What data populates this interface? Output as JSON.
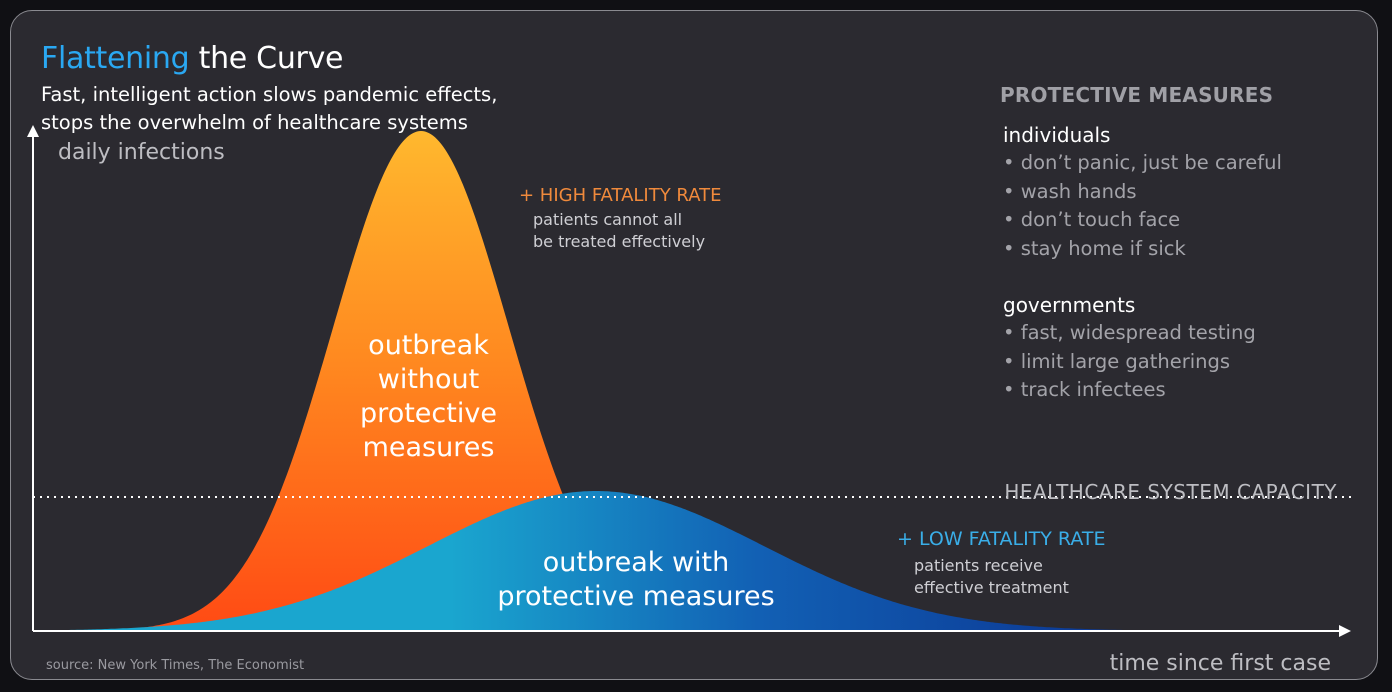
{
  "title": {
    "highlight": "Flattening",
    "rest": " the Curve"
  },
  "subtitle": "Fast, intelligent action slows pandemic effects,\nstops the overwhelm of healthcare systems",
  "axes": {
    "y_label": "daily infections",
    "x_label": "time since first case"
  },
  "curves": {
    "without": {
      "label": "outbreak\nwithout\nprotective\nmeasures",
      "peak_relative": 1.0,
      "colors": [
        "#ff4a14",
        "#ff8a20",
        "#ffb82e"
      ]
    },
    "with": {
      "label": "outbreak with\nprotective measures",
      "peak_relative": 0.28,
      "colors": [
        "#1aa6cf",
        "#1260b4",
        "#0a2e8c"
      ]
    }
  },
  "capacity": {
    "label": "HEALTHCARE SYSTEM CAPACITY"
  },
  "annotations": {
    "high": {
      "title": "+ HIGH FATALITY RATE",
      "body": "patients cannot all\nbe treated effectively"
    },
    "low": {
      "title": "+ LOW FATALITY RATE",
      "body": "patients receive\neffective treatment"
    }
  },
  "protective_measures": {
    "heading": "PROTECTIVE MEASURES",
    "individuals": {
      "title": "individuals",
      "items": [
        "• don’t panic, just be careful",
        "• wash hands",
        "• don’t touch face",
        "• stay home if sick"
      ]
    },
    "governments": {
      "title": "governments",
      "items": [
        "• fast, widespread testing",
        "• limit large gatherings",
        "• track infectees"
      ]
    }
  },
  "source": "source: New York Times, The Economist",
  "colors": {
    "background": "#2b2a30",
    "accent_blue": "#2aa8f2",
    "high_orange": "#f08a3c",
    "low_blue": "#3aaee8"
  }
}
